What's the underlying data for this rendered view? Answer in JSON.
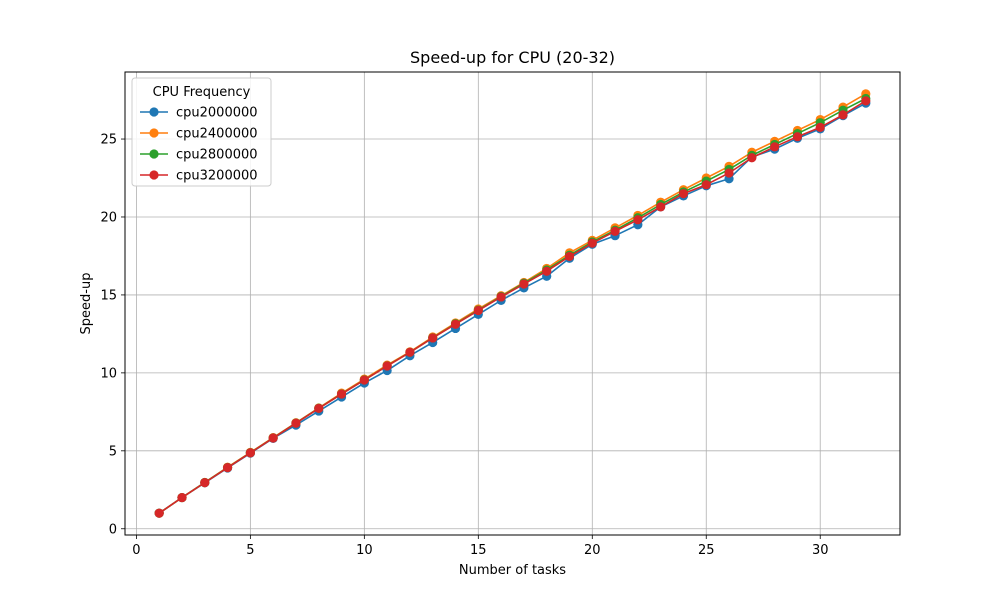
{
  "chart_data": {
    "type": "line",
    "title": "Speed-up for CPU (20-32)",
    "xlabel": "Number of tasks",
    "ylabel": "Speed-up",
    "xlim": [
      -0.5,
      33.5
    ],
    "ylim": [
      -0.4,
      29.3
    ],
    "x_ticks": [
      0,
      5,
      10,
      15,
      20,
      25,
      30
    ],
    "y_ticks": [
      0,
      5,
      10,
      15,
      20,
      25
    ],
    "grid": true,
    "legend_title": "CPU Frequency",
    "legend_position": "upper-left",
    "x": [
      1,
      2,
      3,
      4,
      5,
      6,
      7,
      8,
      9,
      10,
      11,
      12,
      13,
      14,
      15,
      16,
      17,
      18,
      19,
      20,
      21,
      22,
      23,
      24,
      25,
      26,
      27,
      28,
      29,
      30,
      31,
      32
    ],
    "series": [
      {
        "name": "cpu2000000",
        "color": "#1f77b4",
        "values": [
          1.0,
          2.0,
          2.95,
          3.9,
          4.85,
          5.8,
          6.65,
          7.55,
          8.45,
          9.35,
          10.15,
          11.1,
          11.95,
          12.85,
          13.75,
          14.65,
          15.45,
          16.2,
          17.35,
          18.25,
          18.8,
          19.5,
          20.65,
          21.35,
          22.0,
          22.45,
          23.85,
          24.35,
          25.05,
          25.65,
          26.5,
          27.3
        ]
      },
      {
        "name": "cpu2400000",
        "color": "#ff7f0e",
        "values": [
          1.0,
          2.0,
          2.97,
          3.95,
          4.9,
          5.85,
          6.8,
          7.75,
          8.7,
          9.6,
          10.5,
          11.35,
          12.3,
          13.2,
          14.1,
          14.95,
          15.8,
          16.7,
          17.7,
          18.5,
          19.3,
          20.1,
          20.95,
          21.75,
          22.5,
          23.25,
          24.15,
          24.85,
          25.55,
          26.25,
          27.05,
          27.9
        ]
      },
      {
        "name": "cpu2800000",
        "color": "#2ca02c",
        "values": [
          1.0,
          2.0,
          2.97,
          3.93,
          4.88,
          5.83,
          6.78,
          7.73,
          8.65,
          9.55,
          10.45,
          11.32,
          12.25,
          13.15,
          14.03,
          14.9,
          15.75,
          16.6,
          17.55,
          18.4,
          19.15,
          19.95,
          20.8,
          21.6,
          22.3,
          23.05,
          23.95,
          24.65,
          25.35,
          26.05,
          26.85,
          27.6
        ]
      },
      {
        "name": "cpu3200000",
        "color": "#d62728",
        "values": [
          1.0,
          2.0,
          2.96,
          3.92,
          4.87,
          5.82,
          6.77,
          7.72,
          8.64,
          9.54,
          10.44,
          11.32,
          12.24,
          13.12,
          14.0,
          14.87,
          15.7,
          16.52,
          17.47,
          18.32,
          19.08,
          19.82,
          20.65,
          21.5,
          22.07,
          22.82,
          23.8,
          24.5,
          25.15,
          25.75,
          26.55,
          27.45
        ]
      }
    ]
  }
}
